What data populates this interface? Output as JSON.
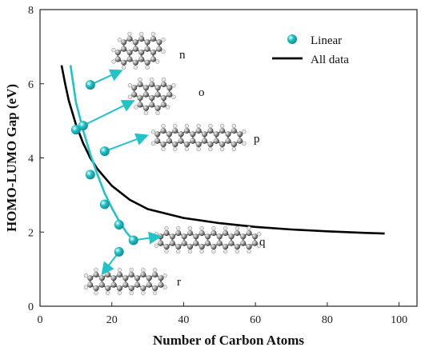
{
  "chart_data": {
    "type": "scatter",
    "title": "",
    "xlabel": "Number of Carbon Atoms",
    "ylabel": "HOMO-LUMO Gap (eV)",
    "xlim": [
      0,
      105
    ],
    "ylim": [
      0,
      8
    ],
    "xticks": [
      0,
      20,
      40,
      60,
      80,
      100
    ],
    "yticks": [
      0,
      2,
      4,
      6,
      8
    ],
    "grid": false,
    "legend_position": "top-right",
    "series": [
      {
        "name": "Linear",
        "kind": "markers-with-fit",
        "color": "#1fc3c8",
        "points": [
          {
            "x": 14,
            "y": 5.97
          },
          {
            "x": 10,
            "y": 4.76
          },
          {
            "x": 12,
            "y": 4.87
          },
          {
            "x": 18,
            "y": 4.18
          },
          {
            "x": 14,
            "y": 3.55
          },
          {
            "x": 18,
            "y": 2.75
          },
          {
            "x": 22,
            "y": 2.2
          },
          {
            "x": 26,
            "y": 1.78
          },
          {
            "x": 22,
            "y": 1.47
          }
        ],
        "fit_curve": [
          [
            8.5,
            6.5
          ],
          [
            10,
            5.5
          ],
          [
            12,
            4.75
          ],
          [
            14,
            4.1
          ],
          [
            16,
            3.55
          ],
          [
            18,
            3.05
          ],
          [
            20,
            2.65
          ],
          [
            22,
            2.3
          ],
          [
            24,
            2.0
          ],
          [
            26,
            1.78
          ],
          [
            27,
            1.75
          ]
        ]
      },
      {
        "name": "All data",
        "kind": "line",
        "color": "#000000",
        "curve": [
          [
            6,
            6.5
          ],
          [
            7,
            6.0
          ],
          [
            8,
            5.55
          ],
          [
            10,
            4.9
          ],
          [
            12,
            4.4
          ],
          [
            14,
            4.0
          ],
          [
            16,
            3.7
          ],
          [
            20,
            3.25
          ],
          [
            25,
            2.87
          ],
          [
            30,
            2.62
          ],
          [
            40,
            2.38
          ],
          [
            50,
            2.24
          ],
          [
            60,
            2.14
          ],
          [
            70,
            2.07
          ],
          [
            80,
            2.02
          ],
          [
            90,
            1.98
          ],
          [
            96,
            1.96
          ]
        ]
      }
    ],
    "annotations": [
      {
        "label": "n",
        "from": {
          "x": 14,
          "y": 5.97
        }
      },
      {
        "label": "o",
        "from": {
          "x": 12,
          "y": 4.87
        }
      },
      {
        "label": "p",
        "from": {
          "x": 18,
          "y": 4.18
        }
      },
      {
        "label": "q",
        "from": {
          "x": 26,
          "y": 1.78
        }
      },
      {
        "label": "r",
        "from": {
          "x": 22,
          "y": 1.47
        }
      }
    ]
  }
}
